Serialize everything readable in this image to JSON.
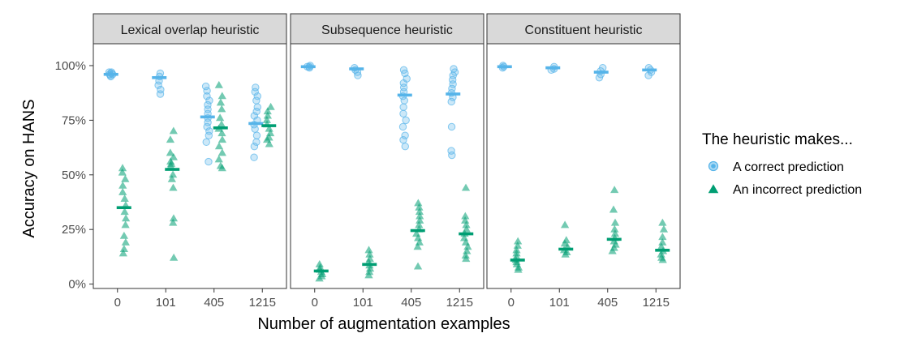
{
  "chart_data": {
    "type": "scatter",
    "xlabel": "Number of augmentation examples",
    "ylabel": "Accuracy on HANS",
    "x_categories": [
      "0",
      "101",
      "405",
      "1215"
    ],
    "y_ticks": [
      {
        "value": 0,
        "label": "0%"
      },
      {
        "value": 0.25,
        "label": "25%"
      },
      {
        "value": 0.5,
        "label": "50%"
      },
      {
        "value": 0.75,
        "label": "75%"
      },
      {
        "value": 1.0,
        "label": "100%"
      }
    ],
    "ylim": [
      -0.02,
      1.1
    ],
    "legend": {
      "title": "The heuristic makes...",
      "position": "right",
      "items": [
        {
          "key": "correct",
          "label": "A correct prediction",
          "color": "#56B4E9",
          "shape": "circle"
        },
        {
          "key": "incorrect",
          "label": "An incorrect prediction",
          "color": "#009E73",
          "shape": "triangle"
        }
      ]
    },
    "panels": [
      {
        "title": "Lexical overlap heuristic",
        "groups": [
          {
            "x": "0",
            "correct": {
              "mean": 0.96,
              "points": [
                0.96,
                0.97,
                0.965,
                0.955,
                0.95,
                0.97,
                0.96
              ]
            },
            "incorrect": {
              "mean": 0.35,
              "points": [
                0.53,
                0.51,
                0.48,
                0.45,
                0.42,
                0.39,
                0.36,
                0.33,
                0.3,
                0.27,
                0.22,
                0.19,
                0.16,
                0.14
              ]
            }
          },
          {
            "x": "101",
            "correct": {
              "mean": 0.945,
              "points": [
                0.965,
                0.95,
                0.93,
                0.91,
                0.89,
                0.87
              ]
            },
            "incorrect": {
              "mean": 0.525,
              "points": [
                0.7,
                0.66,
                0.6,
                0.58,
                0.56,
                0.55,
                0.54,
                0.5,
                0.48,
                0.44,
                0.3,
                0.28,
                0.12
              ]
            }
          },
          {
            "x": "405",
            "correct": {
              "mean": 0.765,
              "points": [
                0.905,
                0.885,
                0.86,
                0.84,
                0.82,
                0.8,
                0.78,
                0.76,
                0.74,
                0.72,
                0.7,
                0.68,
                0.65,
                0.56
              ]
            },
            "incorrect": {
              "mean": 0.715,
              "points": [
                0.91,
                0.86,
                0.83,
                0.8,
                0.76,
                0.73,
                0.71,
                0.69,
                0.66,
                0.63,
                0.6,
                0.57,
                0.54,
                0.53
              ]
            }
          },
          {
            "x": "1215",
            "correct": {
              "mean": 0.735,
              "points": [
                0.9,
                0.88,
                0.86,
                0.84,
                0.81,
                0.79,
                0.77,
                0.75,
                0.73,
                0.71,
                0.68,
                0.65,
                0.63,
                0.58
              ]
            },
            "incorrect": {
              "mean": 0.725,
              "points": [
                0.81,
                0.79,
                0.77,
                0.75,
                0.73,
                0.71,
                0.69,
                0.67,
                0.66,
                0.64
              ]
            }
          }
        ]
      },
      {
        "title": "Subsequence heuristic",
        "groups": [
          {
            "x": "0",
            "correct": {
              "mean": 0.995,
              "points": [
                0.995,
                1.0,
                0.99,
                0.995
              ]
            },
            "incorrect": {
              "mean": 0.06,
              "points": [
                0.09,
                0.075,
                0.065,
                0.055,
                0.045,
                0.035,
                0.025
              ]
            }
          },
          {
            "x": "101",
            "correct": {
              "mean": 0.985,
              "points": [
                0.99,
                0.98,
                0.97,
                0.955
              ]
            },
            "incorrect": {
              "mean": 0.09,
              "points": [
                0.155,
                0.135,
                0.115,
                0.1,
                0.085,
                0.07,
                0.055,
                0.04
              ]
            }
          },
          {
            "x": "405",
            "correct": {
              "mean": 0.865,
              "points": [
                0.98,
                0.965,
                0.94,
                0.92,
                0.9,
                0.88,
                0.86,
                0.84,
                0.81,
                0.78,
                0.75,
                0.72,
                0.68,
                0.66,
                0.63
              ]
            },
            "incorrect": {
              "mean": 0.245,
              "points": [
                0.37,
                0.35,
                0.33,
                0.31,
                0.29,
                0.27,
                0.25,
                0.23,
                0.21,
                0.19,
                0.17,
                0.08
              ]
            }
          },
          {
            "x": "1215",
            "correct": {
              "mean": 0.87,
              "points": [
                0.985,
                0.97,
                0.955,
                0.935,
                0.915,
                0.895,
                0.875,
                0.855,
                0.835,
                0.72,
                0.61,
                0.59
              ]
            },
            "incorrect": {
              "mean": 0.23,
              "points": [
                0.44,
                0.31,
                0.29,
                0.27,
                0.25,
                0.23,
                0.21,
                0.19,
                0.17,
                0.15,
                0.13,
                0.115
              ]
            }
          }
        ]
      },
      {
        "title": "Constituent heuristic",
        "groups": [
          {
            "x": "0",
            "correct": {
              "mean": 0.995,
              "points": [
                1.0,
                0.995,
                0.99
              ]
            },
            "incorrect": {
              "mean": 0.11,
              "points": [
                0.195,
                0.175,
                0.155,
                0.14,
                0.125,
                0.11,
                0.1,
                0.09,
                0.075,
                0.065
              ]
            }
          },
          {
            "x": "101",
            "correct": {
              "mean": 0.99,
              "points": [
                0.995,
                0.985,
                0.98
              ]
            },
            "incorrect": {
              "mean": 0.16,
              "points": [
                0.27,
                0.2,
                0.185,
                0.17,
                0.155,
                0.145,
                0.135
              ]
            }
          },
          {
            "x": "405",
            "correct": {
              "mean": 0.97,
              "points": [
                0.99,
                0.975,
                0.96,
                0.945
              ]
            },
            "incorrect": {
              "mean": 0.205,
              "points": [
                0.43,
                0.34,
                0.28,
                0.25,
                0.23,
                0.21,
                0.195,
                0.18,
                0.165,
                0.15
              ]
            }
          },
          {
            "x": "1215",
            "correct": {
              "mean": 0.98,
              "points": [
                0.99,
                0.98,
                0.97,
                0.955
              ]
            },
            "incorrect": {
              "mean": 0.155,
              "points": [
                0.28,
                0.25,
                0.215,
                0.19,
                0.17,
                0.15,
                0.135,
                0.12,
                0.11
              ]
            }
          }
        ]
      }
    ]
  }
}
